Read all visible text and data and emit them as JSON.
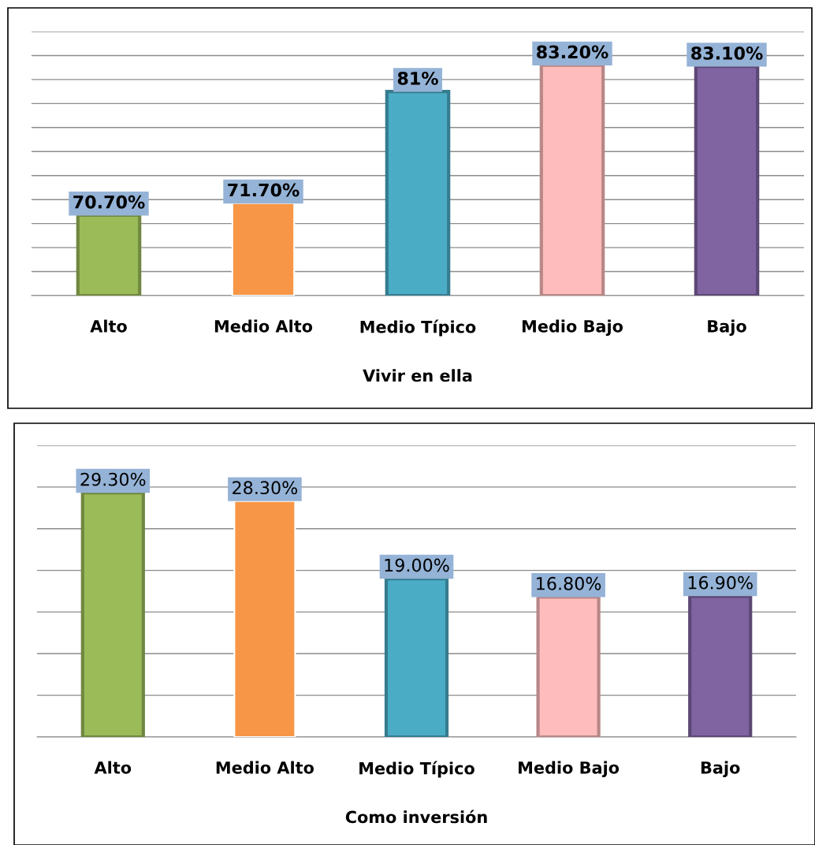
{
  "chart_data": [
    {
      "type": "bar",
      "xlabel": "Vivir en ella",
      "categories": [
        "Alto",
        "Medio Alto",
        "Medio Típico",
        "Medio Bajo",
        "Bajo"
      ],
      "values": [
        70.7,
        71.7,
        81,
        83.2,
        83.1
      ],
      "value_labels": [
        "70.70%",
        "71.70%",
        "81%",
        "83.20%",
        "83.10%"
      ],
      "colors": [
        "#9bbb59",
        "#f79646",
        "#4bacc6",
        "#ffbcbc",
        "#8064a2"
      ],
      "ylim": [
        64,
        86
      ],
      "yticks": [
        {
          "value": 64,
          "label": null
        },
        {
          "value": 66,
          "label": null
        },
        {
          "value": 68,
          "label": null
        },
        {
          "value": 70,
          "label": null
        },
        {
          "value": 72,
          "label": null
        },
        {
          "value": 74,
          "label": null
        },
        {
          "value": 76,
          "label": null
        },
        {
          "value": 78,
          "label": null
        },
        {
          "value": 80,
          "label": null
        },
        {
          "value": 82,
          "label": null
        },
        {
          "value": 84,
          "label": null
        },
        {
          "value": 86,
          "label": null
        }
      ],
      "grid": "y",
      "tick_labels": "x"
    },
    {
      "type": "bar",
      "xlabel": "Como inversión",
      "categories": [
        "Alto",
        "Medio Alto",
        "Medio Típico",
        "Medio Bajo",
        "Bajo"
      ],
      "values": [
        29.3,
        28.3,
        19.0,
        16.8,
        16.9
      ],
      "value_labels": [
        "29.30%",
        "28.30%",
        "19.00%",
        "16.80%",
        "16.90%"
      ],
      "colors": [
        "#9bbb59",
        "#f79646",
        "#4bacc6",
        "#ffbcbc",
        "#8064a2"
      ],
      "ylim": [
        0,
        35
      ],
      "yticks": [
        {
          "value": 0,
          "label": null
        },
        {
          "value": 5,
          "label": null
        },
        {
          "value": 10,
          "label": null
        },
        {
          "value": 15,
          "label": null
        },
        {
          "value": 20,
          "label": null
        },
        {
          "value": 25,
          "label": null
        },
        {
          "value": 30,
          "label": null
        },
        {
          "value": 35,
          "label": null
        }
      ],
      "grid": "y",
      "tick_labels": "x"
    }
  ]
}
